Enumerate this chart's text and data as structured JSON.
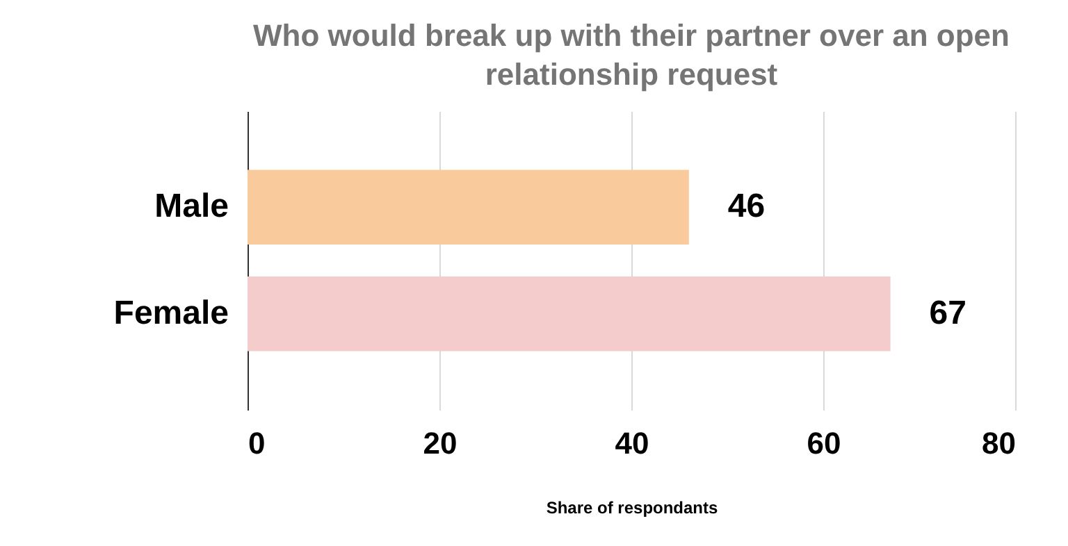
{
  "chart_data": {
    "type": "bar",
    "orientation": "horizontal",
    "title": "Who would break up with their partner over an open relationship request",
    "xlabel": "Share of respondants",
    "categories": [
      "Male",
      "Female"
    ],
    "values": [
      46,
      67
    ],
    "colors": [
      "#f9cb9c",
      "#f4cccc"
    ],
    "xlim": [
      0,
      80
    ],
    "xticks": [
      0,
      20,
      40,
      60,
      80
    ],
    "grid": "x",
    "data_labels": true
  }
}
